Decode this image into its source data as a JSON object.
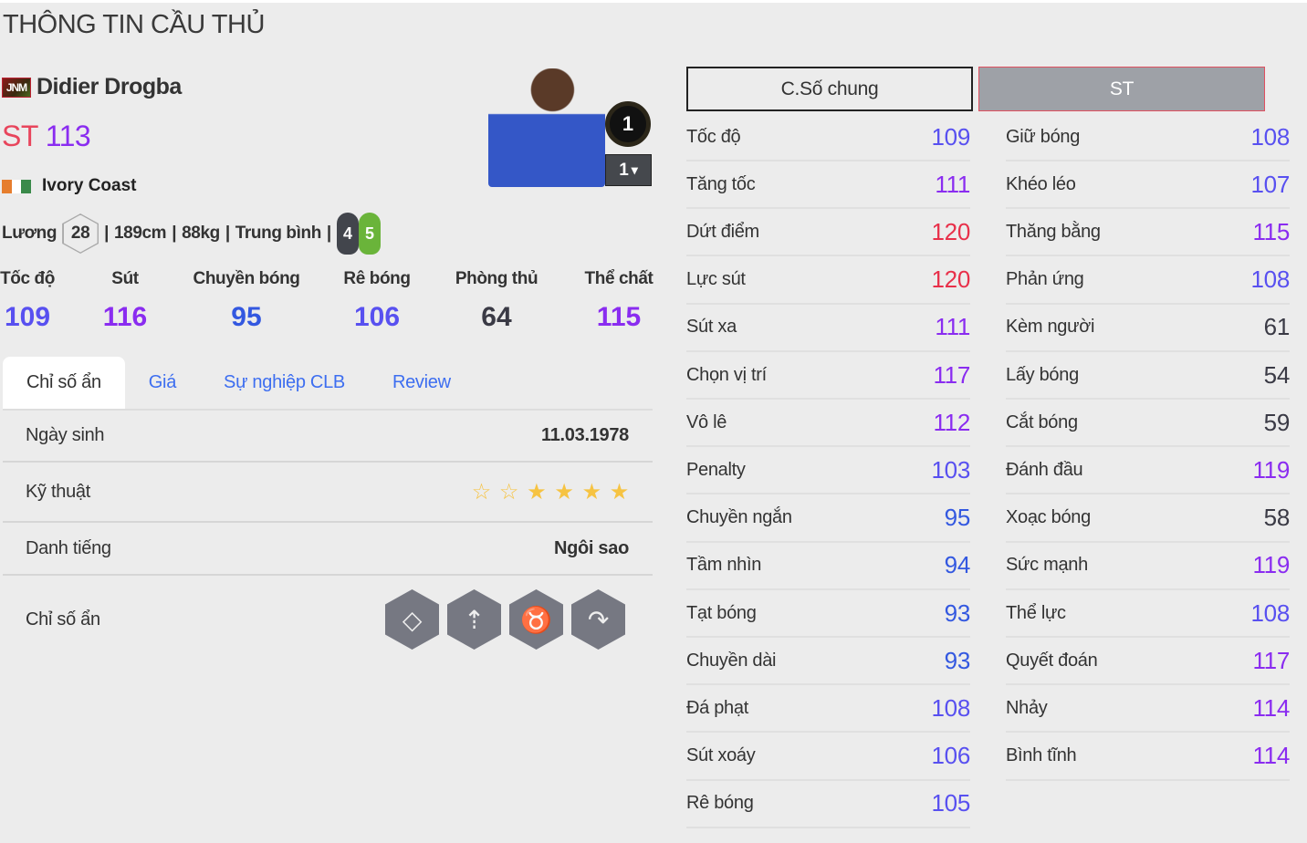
{
  "page_title": "THÔNG TIN CẦU THỦ",
  "player": {
    "logo_text": "JNM",
    "name": "Didier Drogba",
    "position": "ST",
    "ovr": "113",
    "nation": "Ivory Coast",
    "flag_colors": [
      "#e67e2e",
      "#ffffff",
      "#3a8a4a"
    ],
    "salary_label": "Lương",
    "salary": "28",
    "height": "189cm",
    "weight": "88kg",
    "body": "Trung bình",
    "sep": "|",
    "left_foot": "4",
    "right_foot": "5",
    "season_badge": "1",
    "upgrade_level": "1",
    "upgrade_caret": "▾"
  },
  "summary": [
    {
      "label": "Tốc độ",
      "value": "109"
    },
    {
      "label": "Sút",
      "value": "116"
    },
    {
      "label": "Chuyền bóng",
      "value": "95"
    },
    {
      "label": "Rê bóng",
      "value": "106"
    },
    {
      "label": "Phòng thủ",
      "value": "64"
    },
    {
      "label": "Thể chất",
      "value": "115"
    }
  ],
  "tabs": [
    {
      "label": "Chỉ số ẩn",
      "active": true
    },
    {
      "label": "Giá"
    },
    {
      "label": "Sự nghiệp CLB"
    },
    {
      "label": "Review"
    }
  ],
  "info": {
    "birth_label": "Ngày sinh",
    "birth": "11.03.1978",
    "skill_label": "Kỹ thuật",
    "skill_stars": 4,
    "skill_max": 6,
    "rep_label": "Danh tiếng",
    "rep": "Ngôi sao",
    "traits_label": "Chỉ số ẩn",
    "traits": [
      "diamond-icon",
      "power-header-icon",
      "bull-icon",
      "curve-shot-icon"
    ]
  },
  "stat_tabs": {
    "general": "C.Số chung",
    "position": "ST"
  },
  "stats_left": [
    [
      "Tốc độ",
      "109"
    ],
    [
      "Tăng tốc",
      "111"
    ],
    [
      "Dứt điểm",
      "120"
    ],
    [
      "Lực sút",
      "120"
    ],
    [
      "Sút xa",
      "111"
    ],
    [
      "Chọn vị trí",
      "117"
    ],
    [
      "Vô lê",
      "112"
    ],
    [
      "Penalty",
      "103"
    ],
    [
      "Chuyền ngắn",
      "95"
    ],
    [
      "Tầm nhìn",
      "94"
    ],
    [
      "Tạt bóng",
      "93"
    ],
    [
      "Chuyền dài",
      "93"
    ],
    [
      "Đá phạt",
      "108"
    ],
    [
      "Sút xoáy",
      "106"
    ],
    [
      "Rê bóng",
      "105"
    ]
  ],
  "stats_right": [
    [
      "Giữ bóng",
      "108"
    ],
    [
      "Khéo léo",
      "107"
    ],
    [
      "Thăng bằng",
      "115"
    ],
    [
      "Phản ứng",
      "108"
    ],
    [
      "Kèm người",
      "61"
    ],
    [
      "Lấy bóng",
      "54"
    ],
    [
      "Cắt bóng",
      "59"
    ],
    [
      "Đánh đầu",
      "119"
    ],
    [
      "Xoạc bóng",
      "58"
    ],
    [
      "Sức mạnh",
      "119"
    ],
    [
      "Thể lực",
      "108"
    ],
    [
      "Quyết đoán",
      "117"
    ],
    [
      "Nhảy",
      "114"
    ],
    [
      "Bình tĩnh",
      "114"
    ]
  ],
  "value_colors": {
    "below_80": "#3a3a45",
    "80_99": "#3358e0",
    "100_109": "#5850f0",
    "110_119": "#8a2cf0",
    "120_plus": "#e8304a"
  }
}
